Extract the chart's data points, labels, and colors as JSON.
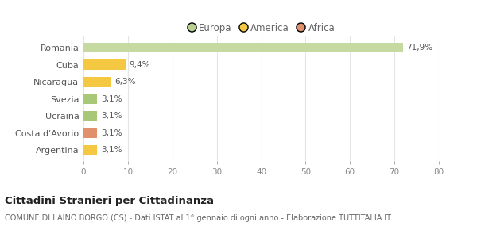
{
  "categories": [
    "Argentina",
    "Costa d'Avorio",
    "Ucraina",
    "Svezia",
    "Nicaragua",
    "Cuba",
    "Romania"
  ],
  "values": [
    3.1,
    3.1,
    3.1,
    3.1,
    6.3,
    9.4,
    71.9
  ],
  "colors": [
    "#f5c842",
    "#e0906a",
    "#a8c878",
    "#a8c878",
    "#f5c842",
    "#f5c842",
    "#c5d9a0"
  ],
  "labels": [
    "3,1%",
    "3,1%",
    "3,1%",
    "3,1%",
    "6,3%",
    "9,4%",
    "71,9%"
  ],
  "legend_items": [
    {
      "label": "Europa",
      "color": "#b8d090"
    },
    {
      "label": "America",
      "color": "#f5c842"
    },
    {
      "label": "Africa",
      "color": "#e0906a"
    }
  ],
  "xlim": [
    0,
    80
  ],
  "xticks": [
    0,
    10,
    20,
    30,
    40,
    50,
    60,
    70,
    80
  ],
  "title_bold": "Cittadini Stranieri per Cittadinanza",
  "subtitle": "COMUNE DI LAINO BORGO (CS) - Dati ISTAT al 1° gennaio di ogni anno - Elaborazione TUTTITALIA.IT",
  "bg_color": "#ffffff",
  "grid_color": "#e5e5e5",
  "bar_height": 0.6,
  "label_fontsize": 7.5,
  "ytick_fontsize": 8.0,
  "xtick_fontsize": 7.5,
  "legend_fontsize": 8.5,
  "title_fontsize": 9.5,
  "subtitle_fontsize": 7.0
}
